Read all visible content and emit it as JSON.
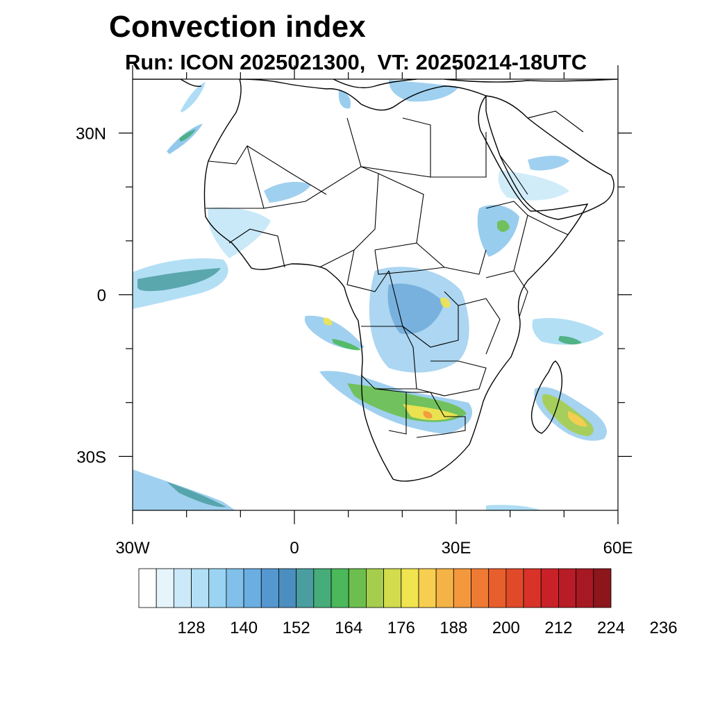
{
  "title": "Convection index",
  "subtitle": "Run: ICON 2025021300,  VT: 20250214-18UTC",
  "map": {
    "lon_range": [
      -30,
      60
    ],
    "lat_range": [
      -40,
      40
    ],
    "lon_ticks": [
      {
        "value": -30,
        "label": "30W"
      },
      {
        "value": 0,
        "label": "0"
      },
      {
        "value": 30,
        "label": "30E"
      },
      {
        "value": 60,
        "label": "60E"
      }
    ],
    "lat_ticks": [
      {
        "value": 30,
        "label": "30N"
      },
      {
        "value": 0,
        "label": "0"
      },
      {
        "value": -30,
        "label": "30S"
      }
    ],
    "minor_lon_ticks": [
      -20,
      -10,
      10,
      20,
      40,
      50
    ],
    "minor_lat_ticks": [
      20,
      10,
      -10,
      -20
    ]
  },
  "colorbar": {
    "colors": [
      "#ffffff",
      "#e6f4fc",
      "#cbe9f8",
      "#b2dff5",
      "#9ad4f2",
      "#80c0ea",
      "#6aaee2",
      "#5598d0",
      "#4a8fbf",
      "#4a9ea0",
      "#46ad7a",
      "#4bb85a",
      "#6cbf4e",
      "#a6cd4c",
      "#d2dc4c",
      "#f0e450",
      "#f7ce4f",
      "#f5b246",
      "#f4983d",
      "#ef7a33",
      "#e85e2c",
      "#e04a29",
      "#d93329",
      "#c82228",
      "#b81c26",
      "#a71922",
      "#8c161c"
    ],
    "labels": [
      "128",
      "140",
      "152",
      "164",
      "176",
      "188",
      "200",
      "212",
      "224",
      "236"
    ]
  }
}
